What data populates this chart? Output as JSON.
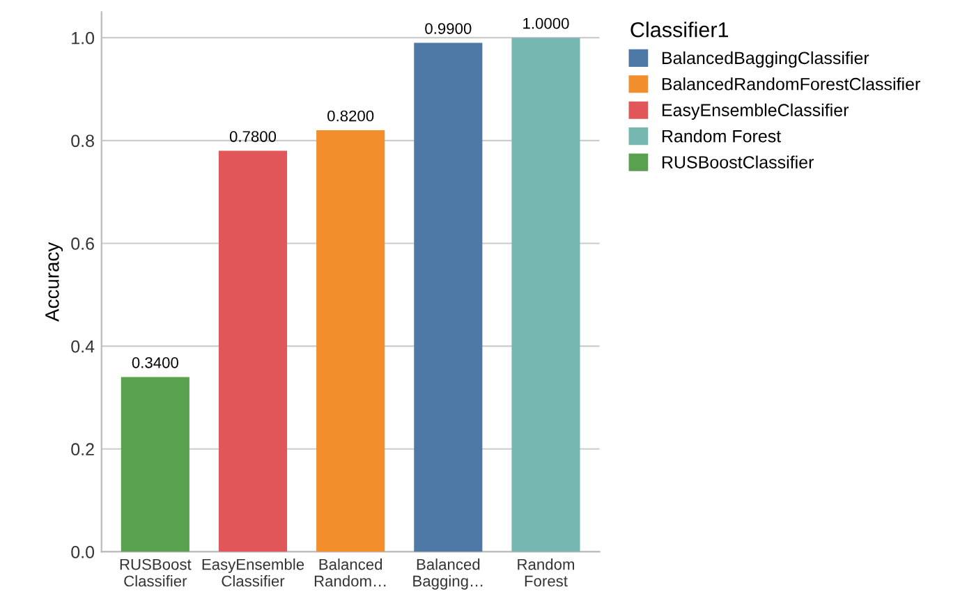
{
  "chart_data": {
    "type": "bar",
    "ylabel": "Accuracy",
    "legend_title": "Classifier1",
    "categories": [
      "RUSBoost Classifier",
      "EasyEnsemble Classifier",
      "Balanced Random…",
      "Balanced Bagging…",
      "Random Forest"
    ],
    "series": [
      {
        "name": "BalancedBaggingClassifier",
        "color": "#4e79a7",
        "values": [
          null,
          null,
          null,
          0.99,
          null
        ],
        "value_labels": [
          null,
          null,
          null,
          "0.9900",
          null
        ]
      },
      {
        "name": "BalancedRandomForestClassifier",
        "color": "#f28e2b",
        "values": [
          null,
          null,
          0.82,
          null,
          null
        ],
        "value_labels": [
          null,
          null,
          "0.8200",
          null,
          null
        ]
      },
      {
        "name": "EasyEnsembleClassifier",
        "color": "#e15759",
        "values": [
          null,
          0.78,
          null,
          null,
          null
        ],
        "value_labels": [
          null,
          "0.7800",
          null,
          null,
          null
        ]
      },
      {
        "name": "Random Forest",
        "color": "#76b7b2",
        "values": [
          null,
          null,
          null,
          null,
          1.0
        ],
        "value_labels": [
          null,
          null,
          null,
          null,
          "1.0000"
        ]
      },
      {
        "name": "RUSBoostClassifier",
        "color": "#59a14f",
        "values": [
          0.34,
          null,
          null,
          null,
          null
        ],
        "value_labels": [
          "0.3400",
          null,
          null,
          null,
          null
        ]
      }
    ],
    "ylim": [
      0,
      1.05
    ],
    "yticks": [
      {
        "value": 0,
        "label": "0.0"
      },
      {
        "value": 0.2,
        "label": "0.2"
      },
      {
        "value": 0.4,
        "label": "0.4"
      },
      {
        "value": 0.6,
        "label": "0.6"
      },
      {
        "value": 0.8,
        "label": "0.8"
      },
      {
        "value": 1,
        "label": "1.0"
      }
    ],
    "grid": "y",
    "legend": "top right"
  }
}
